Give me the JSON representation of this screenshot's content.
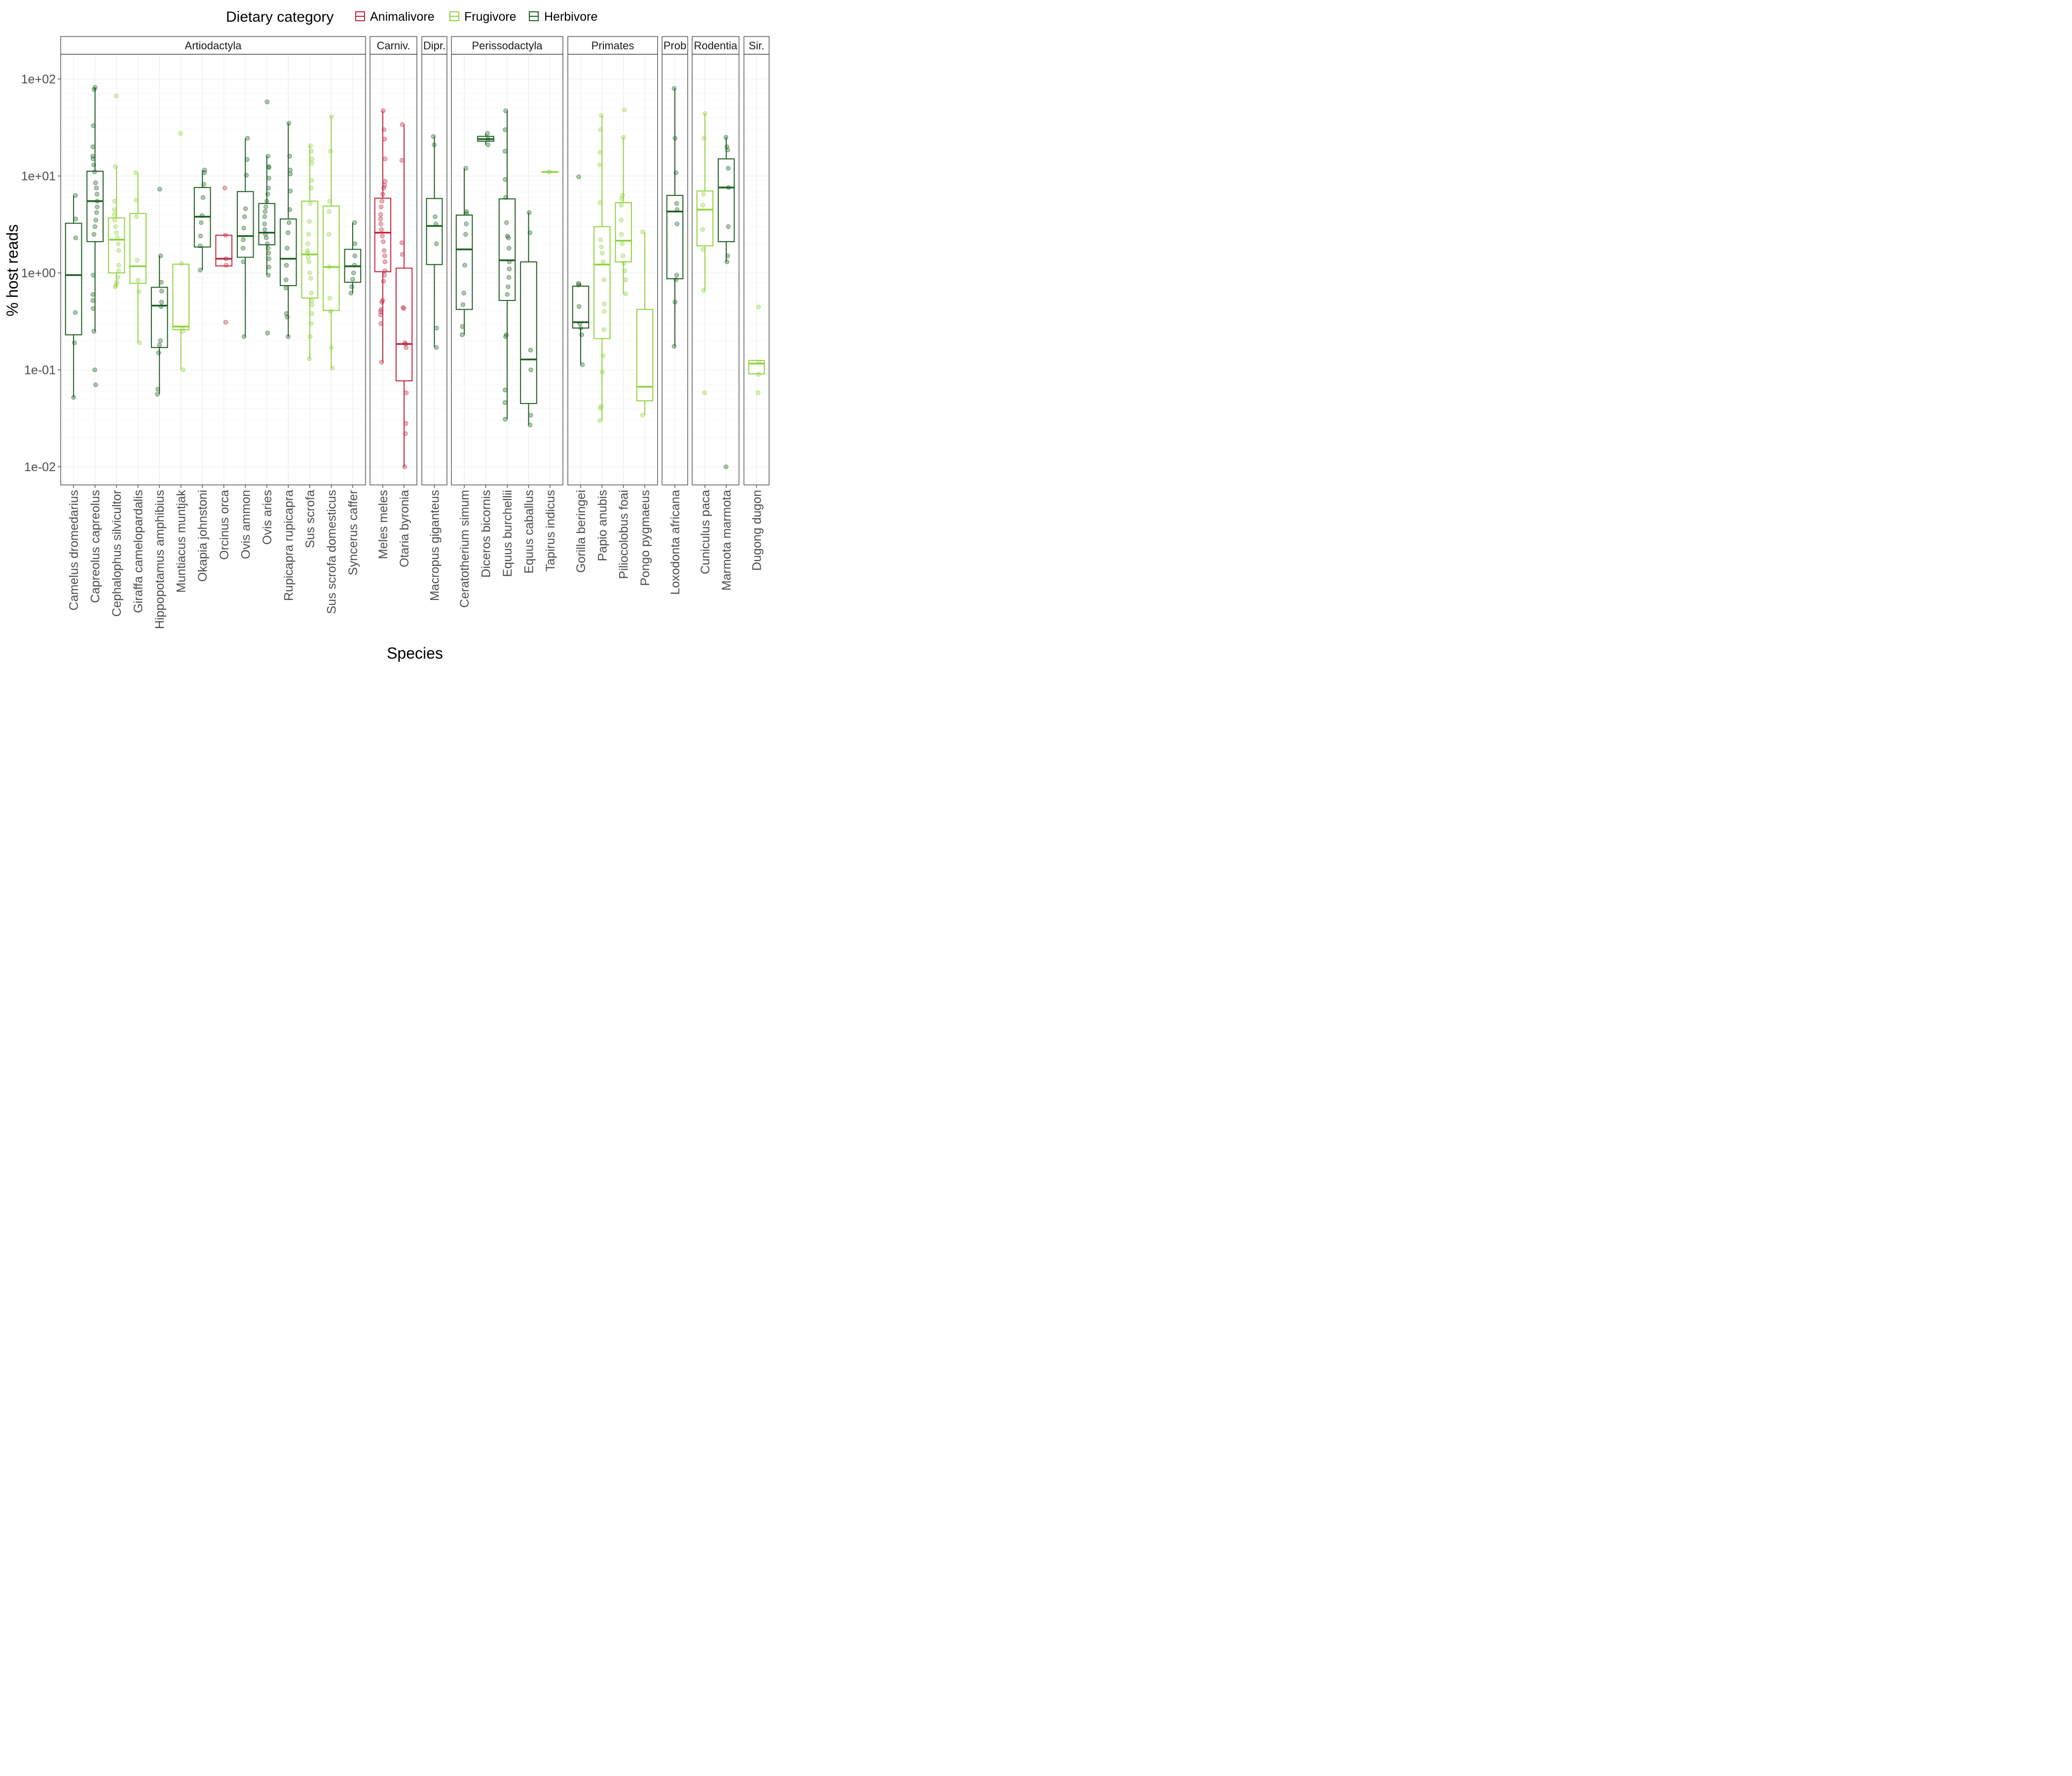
{
  "chart_data": {
    "type": "boxplot",
    "xlabel": "Species",
    "ylabel": "% host reads",
    "yscale": "log10",
    "ylim": [
      0.0065,
      180
    ],
    "yticks": [
      0.01,
      0.1,
      1,
      10,
      100
    ],
    "ytick_labels": [
      "1e-02",
      "1e-01",
      "1e+00",
      "1e+01",
      "1e+02"
    ],
    "grid": true,
    "legend": {
      "title": "Dietary category",
      "position": "top",
      "entries": [
        {
          "label": "Animalivore",
          "color": "#c0243d"
        },
        {
          "label": "Frugivore",
          "color": "#8fd13c"
        },
        {
          "label": "Herbivore",
          "color": "#1b5e20"
        }
      ]
    },
    "panels": [
      {
        "label": "Artiodactyla",
        "species": [
          {
            "name": "Camelus dromedarius",
            "diet": "Herbivore",
            "q1": 0.23,
            "median": 0.95,
            "q3": 3.25,
            "whisker_low": 0.052,
            "whisker_high": 6.3,
            "points": [
              0.052,
              0.19,
              0.39,
              2.3,
              3.6,
              6.3
            ]
          },
          {
            "name": "Capreolus capreolus",
            "diet": "Herbivore",
            "q1": 2.1,
            "median": 5.5,
            "q3": 11.2,
            "whisker_low": 0.25,
            "whisker_high": 82,
            "points": [
              0.07,
              0.1,
              0.25,
              0.43,
              0.52,
              0.6,
              0.95,
              2.5,
              3.0,
              3.5,
              4.2,
              4.8,
              5.5,
              6.5,
              7.5,
              8.5,
              11,
              13,
              15,
              16,
              20,
              33,
              78,
              82
            ]
          },
          {
            "name": "Cephalophus silvicultor",
            "diet": "Frugivore",
            "q1": 1.0,
            "median": 2.2,
            "q3": 3.7,
            "whisker_low": 0.72,
            "whisker_high": 12.5,
            "points": [
              0.72,
              0.75,
              0.8,
              0.9,
              1.05,
              1.2,
              1.7,
              2.0,
              2.3,
              2.6,
              3.0,
              3.5,
              4.0,
              4.5,
              5.5,
              12.5,
              67
            ]
          },
          {
            "name": "Giraffa camelopardalis",
            "diet": "Frugivore",
            "q1": 0.78,
            "median": 1.17,
            "q3": 4.1,
            "whisker_low": 0.19,
            "whisker_high": 10.8,
            "points": [
              0.19,
              0.64,
              0.84,
              1.35,
              3.8,
              5.6,
              10.8
            ]
          },
          {
            "name": "Hippopotamus amphibius",
            "diet": "Herbivore",
            "q1": 0.17,
            "median": 0.46,
            "q3": 0.71,
            "whisker_low": 0.056,
            "whisker_high": 1.5,
            "points": [
              0.056,
              0.063,
              0.15,
              0.18,
              0.2,
              0.45,
              0.5,
              0.65,
              0.8,
              1.5,
              7.3
            ]
          },
          {
            "name": "Muntiacus muntjak",
            "diet": "Frugivore",
            "q1": 0.26,
            "median": 0.28,
            "q3": 1.23,
            "whisker_low": 0.1,
            "whisker_high": 1.23,
            "points": [
              0.1,
              0.25,
              0.27,
              1.25,
              27.5
            ]
          },
          {
            "name": "Okapia johnstoni",
            "diet": "Herbivore",
            "q1": 1.85,
            "median": 3.8,
            "q3": 7.6,
            "whisker_low": 1.07,
            "whisker_high": 11.5,
            "points": [
              1.07,
              1.9,
              2.4,
              3.3,
              3.9,
              6.0,
              8.2,
              10.8,
              11.5
            ]
          },
          {
            "name": "Orcinus orca",
            "diet": "Animalivore",
            "q1": 1.18,
            "median": 1.4,
            "q3": 2.45,
            "whisker_low": 1.18,
            "whisker_high": 2.45,
            "points": [
              0.31,
              1.2,
              1.4,
              2.45,
              7.5
            ]
          },
          {
            "name": "Ovis ammon",
            "diet": "Herbivore",
            "q1": 1.45,
            "median": 2.4,
            "q3": 6.9,
            "whisker_low": 0.22,
            "whisker_high": 24.5,
            "points": [
              0.22,
              1.3,
              1.8,
              2.2,
              2.9,
              3.8,
              4.6,
              10.2,
              14.8,
              24.5
            ]
          },
          {
            "name": "Ovis aries",
            "diet": "Herbivore",
            "q1": 1.95,
            "median": 2.6,
            "q3": 5.2,
            "whisker_low": 0.95,
            "whisker_high": 16,
            "points": [
              0.24,
              0.95,
              1.15,
              1.4,
              1.6,
              1.8,
              2.0,
              2.3,
              2.5,
              2.8,
              3.2,
              3.8,
              4.3,
              4.8,
              5.5,
              6.5,
              7.5,
              9.5,
              12.2,
              12.5,
              16,
              58
            ]
          },
          {
            "name": "Rupicapra rupicapra",
            "diet": "Herbivore",
            "q1": 0.74,
            "median": 1.4,
            "q3": 3.6,
            "whisker_low": 0.22,
            "whisker_high": 35,
            "points": [
              0.22,
              0.35,
              0.38,
              0.7,
              0.85,
              1.2,
              1.8,
              2.6,
              3.3,
              4.5,
              7.0,
              10.5,
              11.5,
              16,
              35
            ]
          },
          {
            "name": "Sus scrofa",
            "diet": "Frugivore",
            "q1": 0.55,
            "median": 1.55,
            "q3": 5.5,
            "whisker_low": 0.13,
            "whisker_high": 20.5,
            "points": [
              0.13,
              0.22,
              0.3,
              0.38,
              0.47,
              0.52,
              0.62,
              0.88,
              1.0,
              1.3,
              1.45,
              1.6,
              1.7,
              2.0,
              2.5,
              3.4,
              5.2,
              7.5,
              9.0,
              13.5,
              15.0,
              18.0,
              20.5
            ]
          },
          {
            "name": "Sus scrofa domesticus",
            "diet": "Frugivore",
            "q1": 0.41,
            "median": 1.15,
            "q3": 4.9,
            "whisker_low": 0.104,
            "whisker_high": 41,
            "points": [
              0.104,
              0.17,
              0.4,
              0.55,
              1.15,
              2.5,
              4.3,
              5.5,
              18,
              41
            ]
          },
          {
            "name": "Syncerus caffer",
            "diet": "Herbivore",
            "q1": 0.8,
            "median": 1.17,
            "q3": 1.75,
            "whisker_low": 0.62,
            "whisker_high": 3.3,
            "points": [
              0.62,
              0.72,
              0.86,
              1.0,
              1.2,
              1.5,
              2.0,
              3.3
            ]
          }
        ]
      },
      {
        "label": "Carniv.",
        "species": [
          {
            "name": "Meles meles",
            "diet": "Animalivore",
            "q1": 1.03,
            "median": 2.6,
            "q3": 5.9,
            "whisker_low": 0.12,
            "whisker_high": 47,
            "points": [
              0.12,
              0.3,
              0.37,
              0.4,
              0.42,
              0.5,
              0.52,
              0.82,
              0.95,
              1.05,
              1.3,
              1.5,
              1.7,
              2.1,
              2.4,
              2.8,
              3.2,
              3.6,
              4.0,
              4.8,
              5.5,
              6.5,
              7.5,
              8.0,
              8.8,
              15,
              24,
              30,
              47
            ]
          },
          {
            "name": "Otaria byronia",
            "diet": "Animalivore",
            "q1": 0.077,
            "median": 0.185,
            "q3": 1.12,
            "whisker_low": 0.01,
            "whisker_high": 34,
            "points": [
              0.01,
              0.022,
              0.028,
              0.058,
              0.17,
              0.185,
              0.19,
              0.43,
              0.44,
              1.55,
              2.05,
              14.5,
              34
            ]
          }
        ]
      },
      {
        "label": "Dipr.",
        "species": [
          {
            "name": "Macropus giganteus",
            "diet": "Herbivore",
            "q1": 1.22,
            "median": 3.05,
            "q3": 5.85,
            "whisker_low": 0.17,
            "whisker_high": 25.5,
            "points": [
              0.17,
              0.27,
              2.0,
              3.2,
              3.8,
              21,
              25.5
            ]
          }
        ]
      },
      {
        "label": "Perissodactyla",
        "species": [
          {
            "name": "Ceratotherium simum",
            "diet": "Herbivore",
            "q1": 0.42,
            "median": 1.75,
            "q3": 3.95,
            "whisker_low": 0.23,
            "whisker_high": 12,
            "points": [
              0.23,
              0.28,
              0.47,
              0.62,
              1.2,
              2.5,
              3.2,
              4.1,
              4.3,
              12
            ]
          },
          {
            "name": "Diceros bicornis",
            "diet": "Herbivore",
            "q1": 22.8,
            "median": 24.0,
            "q3": 25.6,
            "whisker_low": 21.0,
            "whisker_high": 27.5,
            "points": [
              21.0,
              24.0,
              27.5
            ]
          },
          {
            "name": "Equus burchellii",
            "diet": "Herbivore",
            "q1": 0.52,
            "median": 1.35,
            "q3": 5.8,
            "whisker_low": 0.031,
            "whisker_high": 47,
            "points": [
              0.031,
              0.046,
              0.062,
              0.22,
              0.23,
              0.6,
              0.72,
              0.9,
              1.1,
              1.3,
              1.8,
              2.3,
              2.4,
              3.3,
              6.0,
              9.2,
              18,
              30,
              47
            ]
          },
          {
            "name": "Equus caballus",
            "diet": "Herbivore",
            "q1": 0.045,
            "median": 0.128,
            "q3": 1.3,
            "whisker_low": 0.027,
            "whisker_high": 4.2,
            "points": [
              0.027,
              0.034,
              0.1,
              0.16,
              2.6,
              4.2
            ]
          },
          {
            "name": "Tapirus indicus",
            "diet": "Frugivore",
            "q1": 11.0,
            "median": 11.0,
            "q3": 11.0,
            "whisker_low": 11.0,
            "whisker_high": 11.0,
            "points": [
              11.0
            ]
          }
        ]
      },
      {
        "label": "Primates",
        "species": [
          {
            "name": "Gorilla beringei",
            "diet": "Herbivore",
            "q1": 0.27,
            "median": 0.31,
            "q3": 0.73,
            "whisker_low": 0.113,
            "whisker_high": 0.78,
            "points": [
              0.113,
              0.23,
              0.27,
              0.3,
              0.45,
              0.75,
              0.78,
              9.8
            ]
          },
          {
            "name": "Papio anubis",
            "diet": "Frugivore",
            "q1": 0.21,
            "median": 1.22,
            "q3": 3.0,
            "whisker_low": 0.03,
            "whisker_high": 42,
            "points": [
              0.03,
              0.04,
              0.042,
              0.095,
              0.14,
              0.26,
              0.4,
              0.48,
              0.85,
              1.3,
              1.6,
              1.85,
              2.2,
              5.3,
              13,
              17.5,
              30,
              42
            ]
          },
          {
            "name": "Piliocolobus foai",
            "diet": "Frugivore",
            "q1": 1.3,
            "median": 2.15,
            "q3": 5.3,
            "whisker_low": 0.61,
            "whisker_high": 25,
            "points": [
              0.61,
              0.85,
              1.05,
              1.25,
              1.5,
              2.0,
              2.5,
              3.5,
              5.0,
              5.8,
              6.3,
              25,
              48
            ]
          },
          {
            "name": "Pongo pygmaeus",
            "diet": "Frugivore",
            "q1": 0.048,
            "median": 0.067,
            "q3": 0.42,
            "whisker_low": 0.034,
            "whisker_high": 2.65,
            "points": [
              0.034,
              2.65
            ]
          }
        ]
      },
      {
        "label": "Prob",
        "species": [
          {
            "name": "Loxodonta africana",
            "diet": "Herbivore",
            "q1": 0.87,
            "median": 4.3,
            "q3": 6.3,
            "whisker_low": 0.175,
            "whisker_high": 80,
            "points": [
              0.175,
              0.5,
              0.85,
              0.95,
              3.2,
              4.5,
              5.2,
              10.8,
              24.5,
              80
            ]
          }
        ]
      },
      {
        "label": "Rodentia",
        "species": [
          {
            "name": "Cuniculus paca",
            "diet": "Frugivore",
            "q1": 1.9,
            "median": 4.5,
            "q3": 7.0,
            "whisker_low": 0.66,
            "whisker_high": 44,
            "points": [
              0.058,
              0.66,
              1.75,
              2.8,
              5.0,
              6.5,
              24.5,
              44
            ]
          },
          {
            "name": "Marmota marmota",
            "diet": "Herbivore",
            "q1": 2.1,
            "median": 7.6,
            "q3": 15,
            "whisker_low": 1.3,
            "whisker_high": 25,
            "points": [
              0.01,
              1.3,
              1.5,
              3.0,
              7.6,
              12,
              18.5,
              20,
              25
            ]
          }
        ]
      },
      {
        "label": "Sir.",
        "species": [
          {
            "name": "Dugong dugon",
            "diet": "Frugivore",
            "q1": 0.091,
            "median": 0.116,
            "q3": 0.125,
            "whisker_low": 0.091,
            "whisker_high": 0.125,
            "points": [
              0.058,
              0.09,
              0.12,
              0.445
            ]
          }
        ]
      }
    ]
  }
}
